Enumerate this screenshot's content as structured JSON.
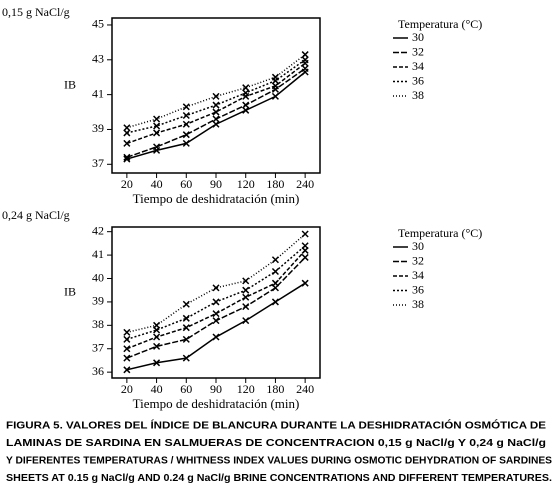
{
  "chart_data": [
    {
      "type": "line",
      "unit_label": "0,15 g NaCl/g",
      "ylabel": "IB",
      "xlabel": "Tiempo de deshidratación (min)",
      "legend_title": "Temperatura (°C)",
      "categories": [
        20,
        40,
        60,
        90,
        120,
        180,
        240
      ],
      "series": [
        {
          "name": "30",
          "color": "#000000",
          "dash": "none",
          "values": [
            37.3,
            37.8,
            38.2,
            39.3,
            40.1,
            40.9,
            42.3
          ]
        },
        {
          "name": "32",
          "color": "#000000",
          "dash": "6,2",
          "values": [
            37.4,
            38.0,
            38.7,
            39.6,
            40.4,
            41.3,
            42.5
          ]
        },
        {
          "name": "34",
          "color": "#000000",
          "dash": "4,2",
          "values": [
            38.2,
            38.8,
            39.3,
            40.0,
            40.9,
            41.5,
            42.8
          ]
        },
        {
          "name": "36",
          "color": "#000000",
          "dash": "2,2",
          "values": [
            38.8,
            39.2,
            39.8,
            40.4,
            41.1,
            41.8,
            43.0
          ]
        },
        {
          "name": "38",
          "color": "#000000",
          "dash": "1,2",
          "values": [
            39.1,
            39.6,
            40.3,
            40.9,
            41.4,
            42.0,
            43.3
          ]
        }
      ],
      "ylim": [
        36.5,
        45.4
      ],
      "yticks": [
        37,
        39,
        41,
        43,
        45
      ]
    },
    {
      "type": "line",
      "unit_label": "0,24 g NaCl/g",
      "ylabel": "IB",
      "xlabel": "Tiempo de deshidratación (min)",
      "legend_title": "Temperatura (°C)",
      "categories": [
        20,
        40,
        60,
        90,
        120,
        180,
        240
      ],
      "series": [
        {
          "name": "30",
          "color": "#000000",
          "dash": "none",
          "values": [
            36.1,
            36.4,
            36.6,
            37.5,
            38.2,
            39.0,
            39.8
          ]
        },
        {
          "name": "32",
          "color": "#000000",
          "dash": "6,2",
          "values": [
            36.6,
            37.1,
            37.4,
            38.2,
            38.8,
            39.6,
            40.9
          ]
        },
        {
          "name": "34",
          "color": "#000000",
          "dash": "4,2",
          "values": [
            37.0,
            37.5,
            37.9,
            38.5,
            39.2,
            39.8,
            41.2
          ]
        },
        {
          "name": "36",
          "color": "#000000",
          "dash": "2,2",
          "values": [
            37.4,
            37.8,
            38.3,
            39.0,
            39.5,
            40.3,
            41.4
          ]
        },
        {
          "name": "38",
          "color": "#000000",
          "dash": "1,2",
          "values": [
            37.7,
            38.0,
            38.9,
            39.6,
            39.9,
            40.8,
            41.9
          ]
        }
      ],
      "ylim": [
        35.75,
        42.2
      ],
      "yticks": [
        36,
        37,
        38,
        39,
        40,
        41,
        42
      ]
    }
  ],
  "caption": [
    "FIGURA 5. VALORES DEL ÍNDICE DE BLANCURA DURANTE LA DESHIDRATACIÓN OSMÓTICA DE",
    "LAMINAS DE SARDINA  EN SALMUERAS DE CONCENTRACION 0,15 g NaCl/g Y 0,24 g  NaCl/g",
    "Y DIFERENTES TEMPERATURAS / WHITNESS INDEX VALUES DURING OSMOTIC DEHYDRATION OF SARDINES",
    "SHEETS AT 0.15 g NaCl/g  AND 0.24 g NaCl/g BRINE CONCENTRATIONS AND DIFFERENT TEMPERATURES."
  ]
}
